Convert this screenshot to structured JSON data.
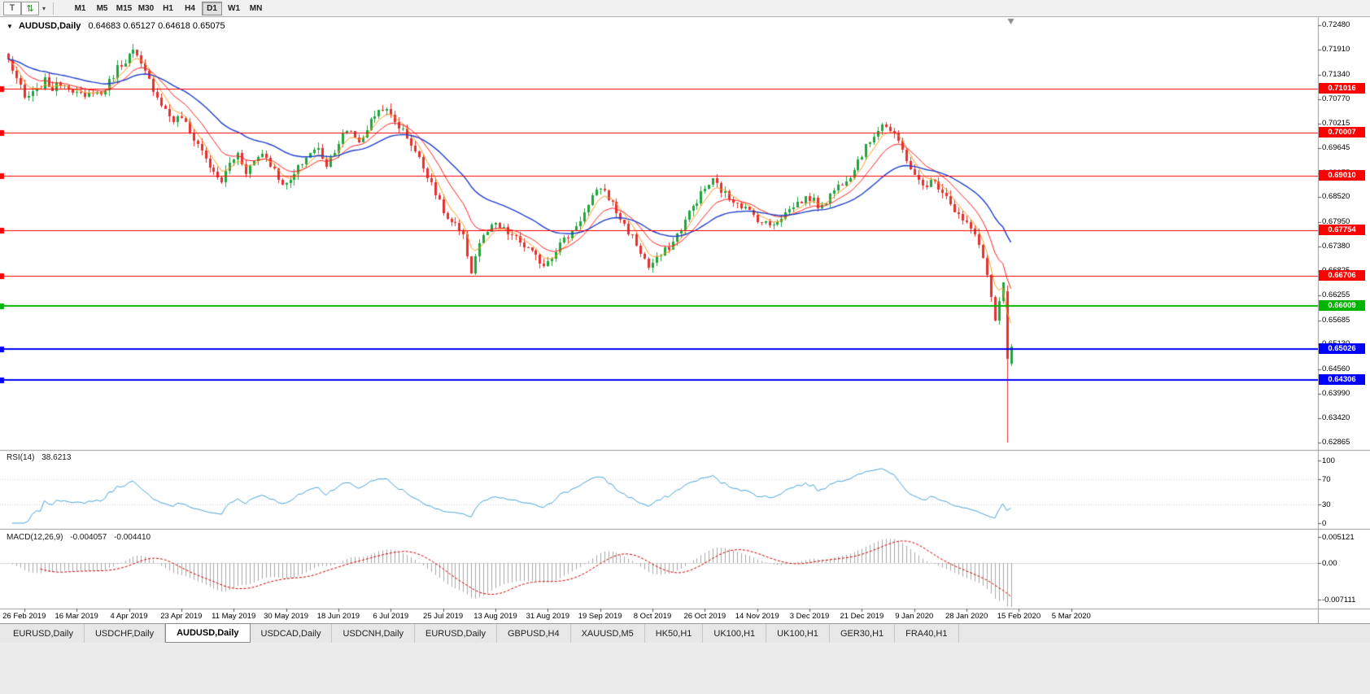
{
  "toolbar": {
    "tool_icon": "T",
    "arrows_icon": "⇅",
    "dropdown_icon": "▾",
    "timeframes": [
      "M1",
      "M5",
      "M15",
      "M30",
      "H1",
      "H4",
      "D1",
      "W1",
      "MN"
    ],
    "active_timeframe": "D1"
  },
  "chart": {
    "dropdown_icon": "▼",
    "symbol": "AUDUSD,Daily",
    "ohlc_text": "0.64683 0.65127 0.64618 0.65075",
    "price_top": 0.7248,
    "price_bottom": 0.62865,
    "price_axis_labels": [
      "0.72480",
      "0.71910",
      "0.71340",
      "0.70770",
      "0.70215",
      "0.69645",
      "0.69075",
      "0.68520",
      "0.67950",
      "0.67380",
      "0.66825",
      "0.66255",
      "0.65685",
      "0.65130",
      "0.64560",
      "0.63990",
      "0.63420",
      "0.62865"
    ],
    "date_labels": [
      "26 Feb 2019",
      "16 Mar 2019",
      "4 Apr 2019",
      "23 Apr 2019",
      "11 May 2019",
      "30 May 2019",
      "18 Jun 2019",
      "6 Jul 2019",
      "25 Jul 2019",
      "13 Aug 2019",
      "31 Aug 2019",
      "19 Sep 2019",
      "8 Oct 2019",
      "26 Oct 2019",
      "14 Nov 2019",
      "3 Dec 2019",
      "21 Dec 2019",
      "9 Jan 2020",
      "28 Jan 2020",
      "15 Feb 2020",
      "5 Mar 2020"
    ],
    "hlines": [
      {
        "price": 0.71016,
        "label": "0.71016",
        "color": "#ff0000",
        "width": 1
      },
      {
        "price": 0.70007,
        "label": "0.70007",
        "color": "#ff0000",
        "width": 1
      },
      {
        "price": 0.6901,
        "label": "0.69010",
        "color": "#ff0000",
        "width": 1
      },
      {
        "price": 0.67754,
        "label": "0.67754",
        "color": "#ff0000",
        "width": 1
      },
      {
        "price": 0.66706,
        "label": "0.66706",
        "color": "#ff0000",
        "width": 1
      },
      {
        "price": 0.66009,
        "label": "0.66009",
        "color": "#00b400",
        "width": 2
      },
      {
        "price": 0.65026,
        "label": "0.65026",
        "color": "#0000ff",
        "width": 2
      },
      {
        "price": 0.64306,
        "label": "0.64306",
        "color": "#0000ff",
        "width": 2
      }
    ],
    "colors": {
      "up": "#1fa63c",
      "down": "#e53030",
      "ma_fast": "#ff9922",
      "ma_mid": "#ff2020",
      "ma_slow": "#2040cc",
      "background": "#ffffff"
    },
    "num_bars": 250,
    "close_anchors": [
      [
        0,
        0.7168
      ],
      [
        2,
        0.7125
      ],
      [
        4,
        0.7078
      ],
      [
        7,
        0.7095
      ],
      [
        9,
        0.712
      ],
      [
        11,
        0.7102
      ],
      [
        13,
        0.7115
      ],
      [
        15,
        0.7108
      ],
      [
        17,
        0.7092
      ],
      [
        19,
        0.7078
      ],
      [
        21,
        0.7098
      ],
      [
        23,
        0.7088
      ],
      [
        25,
        0.7118
      ],
      [
        27,
        0.715
      ],
      [
        29,
        0.7168
      ],
      [
        31,
        0.7188
      ],
      [
        33,
        0.7155
      ],
      [
        35,
        0.712
      ],
      [
        37,
        0.7085
      ],
      [
        39,
        0.7052
      ],
      [
        41,
        0.7028
      ],
      [
        43,
        0.7038
      ],
      [
        45,
        0.7
      ],
      [
        47,
        0.6975
      ],
      [
        49,
        0.6942
      ],
      [
        51,
        0.6905
      ],
      [
        53,
        0.6888
      ],
      [
        55,
        0.693
      ],
      [
        57,
        0.6952
      ],
      [
        59,
        0.6912
      ],
      [
        61,
        0.6935
      ],
      [
        63,
        0.6955
      ],
      [
        65,
        0.693
      ],
      [
        67,
        0.6898
      ],
      [
        69,
        0.6878
      ],
      [
        71,
        0.6902
      ],
      [
        73,
        0.6932
      ],
      [
        75,
        0.6955
      ],
      [
        77,
        0.6962
      ],
      [
        79,
        0.6928
      ],
      [
        81,
        0.6962
      ],
      [
        83,
        0.6995
      ],
      [
        85,
        0.7005
      ],
      [
        87,
        0.6978
      ],
      [
        89,
        0.701
      ],
      [
        91,
        0.7042
      ],
      [
        93,
        0.706
      ],
      [
        95,
        0.7038
      ],
      [
        97,
        0.7015
      ],
      [
        99,
        0.6992
      ],
      [
        101,
        0.6958
      ],
      [
        103,
        0.692
      ],
      [
        105,
        0.6888
      ],
      [
        107,
        0.6838
      ],
      [
        109,
        0.68
      ],
      [
        111,
        0.6785
      ],
      [
        113,
        0.6758
      ],
      [
        115,
        0.6682
      ],
      [
        117,
        0.6748
      ],
      [
        119,
        0.6772
      ],
      [
        121,
        0.6788
      ],
      [
        123,
        0.6775
      ],
      [
        125,
        0.6762
      ],
      [
        127,
        0.6748
      ],
      [
        129,
        0.6732
      ],
      [
        131,
        0.6712
      ],
      [
        133,
        0.6698
      ],
      [
        135,
        0.6718
      ],
      [
        137,
        0.6745
      ],
      [
        139,
        0.6762
      ],
      [
        141,
        0.6788
      ],
      [
        143,
        0.6815
      ],
      [
        145,
        0.6848
      ],
      [
        147,
        0.6875
      ],
      [
        149,
        0.6852
      ],
      [
        151,
        0.6818
      ],
      [
        153,
        0.6788
      ],
      [
        155,
        0.676
      ],
      [
        157,
        0.6725
      ],
      [
        159,
        0.669
      ],
      [
        161,
        0.6708
      ],
      [
        163,
        0.6728
      ],
      [
        165,
        0.6748
      ],
      [
        167,
        0.6782
      ],
      [
        169,
        0.6815
      ],
      [
        171,
        0.6845
      ],
      [
        173,
        0.6872
      ],
      [
        175,
        0.689
      ],
      [
        177,
        0.6868
      ],
      [
        179,
        0.685
      ],
      [
        181,
        0.6842
      ],
      [
        183,
        0.6825
      ],
      [
        185,
        0.681
      ],
      [
        187,
        0.6795
      ],
      [
        189,
        0.6788
      ],
      [
        191,
        0.68
      ],
      [
        193,
        0.6815
      ],
      [
        195,
        0.6832
      ],
      [
        197,
        0.6845
      ],
      [
        199,
        0.685
      ],
      [
        201,
        0.6832
      ],
      [
        203,
        0.6845
      ],
      [
        205,
        0.6868
      ],
      [
        207,
        0.6888
      ],
      [
        209,
        0.6905
      ],
      [
        211,
        0.6938
      ],
      [
        213,
        0.6965
      ],
      [
        215,
        0.6998
      ],
      [
        217,
        0.7022
      ],
      [
        219,
        0.7005
      ],
      [
        221,
        0.6978
      ],
      [
        223,
        0.6942
      ],
      [
        225,
        0.6898
      ],
      [
        227,
        0.6878
      ],
      [
        229,
        0.6888
      ],
      [
        231,
        0.6878
      ],
      [
        233,
        0.6858
      ],
      [
        235,
        0.6822
      ],
      [
        237,
        0.6798
      ],
      [
        239,
        0.6778
      ],
      [
        241,
        0.6742
      ],
      [
        242,
        0.6712
      ],
      [
        243,
        0.6672
      ],
      [
        244,
        0.6622
      ],
      [
        245,
        0.6568
      ],
      [
        246,
        0.6612
      ],
      [
        247,
        0.6655
      ],
      [
        248,
        0.648
      ],
      [
        249,
        0.65075
      ]
    ],
    "last_bars": [
      {
        "open": 0.6635,
        "high": 0.6648,
        "low": 0.6287,
        "close": 0.648
      },
      {
        "open": 0.64683,
        "high": 0.65127,
        "low": 0.64618,
        "close": 0.65075
      }
    ]
  },
  "rsi": {
    "label": "RSI(14)",
    "value": "38.6213",
    "period": 14,
    "color": "#4aa4dc",
    "levels": [
      "100",
      "70",
      "30",
      "0"
    ]
  },
  "macd": {
    "label": "MACD(12,26,9)",
    "value_main": "-0.004057",
    "value_signal": "-0.004410",
    "axis_labels": [
      "0.005121",
      "0.00",
      "-0.007111"
    ],
    "histogram_color": "#a8a8a8",
    "signal_color": "#d00000"
  },
  "tabs": {
    "items": [
      "EURUSD,Daily",
      "USDCHF,Daily",
      "AUDUSD,Daily",
      "USDCAD,Daily",
      "USDCNH,Daily",
      "EURUSD,Daily",
      "GBPUSD,H4",
      "XAUUSD,M5",
      "HK50,H1",
      "UK100,H1",
      "UK100,H1",
      "GER30,H1",
      "FRA40,H1"
    ],
    "active_index": 2
  }
}
